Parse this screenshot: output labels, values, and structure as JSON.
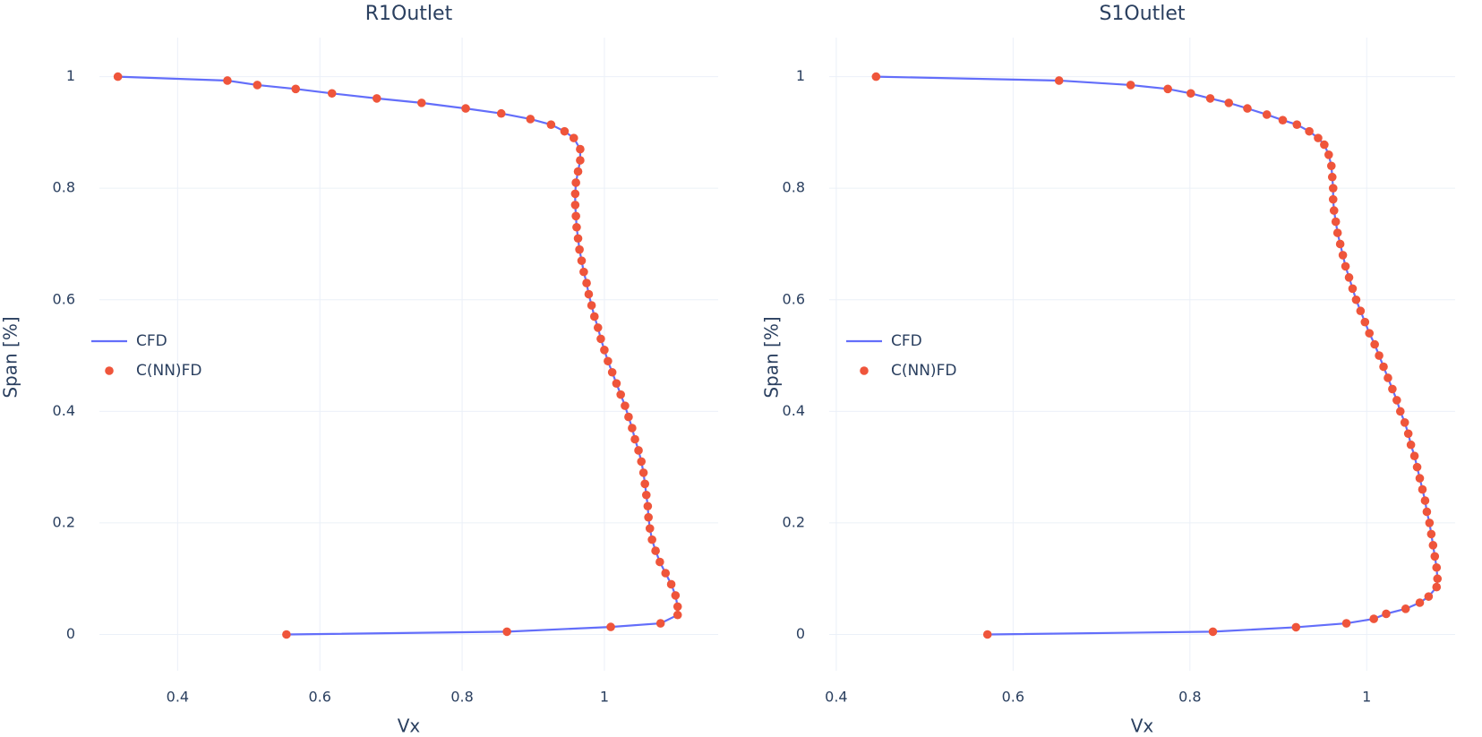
{
  "chart_data": [
    {
      "type": "line",
      "title": "R1Outlet",
      "x_label": "Vx",
      "y_label": "Span [%]",
      "xlim": [
        0.29,
        1.16
      ],
      "ylim": [
        -0.065,
        1.07
      ],
      "xticks": [
        0.4,
        0.6,
        0.8,
        1
      ],
      "yticks": [
        0,
        0.2,
        0.4,
        0.6,
        0.8,
        1
      ],
      "grid": true,
      "legend": "left",
      "series": [
        {
          "name": "CFD",
          "mode": "lines",
          "color": "#636efa",
          "x": [
            0.316,
            0.47,
            0.512,
            0.566,
            0.617,
            0.68,
            0.743,
            0.805,
            0.855,
            0.896,
            0.925,
            0.944,
            0.957,
            0.966,
            0.966,
            0.963,
            0.96,
            0.959,
            0.959,
            0.96,
            0.961,
            0.963,
            0.965,
            0.968,
            0.971,
            0.975,
            0.978,
            0.982,
            0.986,
            0.991,
            0.995,
            1.0,
            1.005,
            1.011,
            1.017,
            1.023,
            1.029,
            1.034,
            1.039,
            1.043,
            1.048,
            1.052,
            1.055,
            1.057,
            1.059,
            1.061,
            1.062,
            1.064,
            1.067,
            1.072,
            1.078,
            1.086,
            1.094,
            1.1,
            1.103,
            1.103,
            1.079,
            1.009,
            0.863,
            0.553
          ],
          "y": [
            1,
            0.993,
            0.985,
            0.978,
            0.97,
            0.961,
            0.953,
            0.943,
            0.934,
            0.924,
            0.914,
            0.902,
            0.89,
            0.87,
            0.85,
            0.83,
            0.81,
            0.79,
            0.77,
            0.75,
            0.73,
            0.71,
            0.69,
            0.67,
            0.65,
            0.63,
            0.61,
            0.59,
            0.57,
            0.55,
            0.53,
            0.51,
            0.49,
            0.47,
            0.45,
            0.43,
            0.41,
            0.39,
            0.37,
            0.35,
            0.33,
            0.31,
            0.29,
            0.27,
            0.25,
            0.23,
            0.21,
            0.19,
            0.17,
            0.15,
            0.13,
            0.11,
            0.09,
            0.07,
            0.05,
            0.035,
            0.02,
            0.0135,
            0.005,
            0
          ]
        },
        {
          "name": "C(NN)FD",
          "mode": "markers",
          "color": "#ef553b",
          "x": [
            0.316,
            0.47,
            0.512,
            0.566,
            0.617,
            0.68,
            0.743,
            0.805,
            0.855,
            0.896,
            0.925,
            0.944,
            0.957,
            0.966,
            0.966,
            0.963,
            0.96,
            0.959,
            0.959,
            0.96,
            0.961,
            0.963,
            0.965,
            0.968,
            0.971,
            0.975,
            0.978,
            0.982,
            0.986,
            0.991,
            0.995,
            1.0,
            1.005,
            1.011,
            1.017,
            1.023,
            1.029,
            1.034,
            1.039,
            1.043,
            1.048,
            1.052,
            1.055,
            1.057,
            1.059,
            1.061,
            1.062,
            1.064,
            1.067,
            1.072,
            1.078,
            1.086,
            1.094,
            1.1,
            1.103,
            1.103,
            1.079,
            1.009,
            0.863,
            0.553
          ],
          "y": [
            1,
            0.993,
            0.985,
            0.978,
            0.97,
            0.961,
            0.953,
            0.943,
            0.934,
            0.924,
            0.914,
            0.902,
            0.89,
            0.87,
            0.85,
            0.83,
            0.81,
            0.79,
            0.77,
            0.75,
            0.73,
            0.71,
            0.69,
            0.67,
            0.65,
            0.63,
            0.61,
            0.59,
            0.57,
            0.55,
            0.53,
            0.51,
            0.49,
            0.47,
            0.45,
            0.43,
            0.41,
            0.39,
            0.37,
            0.35,
            0.33,
            0.31,
            0.29,
            0.27,
            0.25,
            0.23,
            0.21,
            0.19,
            0.17,
            0.15,
            0.13,
            0.11,
            0.09,
            0.07,
            0.05,
            0.035,
            0.02,
            0.0135,
            0.005,
            0
          ]
        }
      ]
    },
    {
      "type": "line",
      "title": "S1Outlet",
      "x_label": "Vx",
      "y_label": "Span [%]",
      "xlim": [
        0.392,
        1.1
      ],
      "ylim": [
        -0.065,
        1.07
      ],
      "xticks": [
        0.4,
        0.6,
        0.8,
        1
      ],
      "yticks": [
        0,
        0.2,
        0.4,
        0.6,
        0.8,
        1
      ],
      "grid": true,
      "legend": "left",
      "series": [
        {
          "name": "CFD",
          "mode": "lines",
          "color": "#636efa",
          "x": [
            0.445,
            0.652,
            0.733,
            0.775,
            0.801,
            0.823,
            0.844,
            0.865,
            0.887,
            0.905,
            0.921,
            0.935,
            0.945,
            0.952,
            0.957,
            0.96,
            0.961,
            0.962,
            0.962,
            0.963,
            0.965,
            0.967,
            0.97,
            0.973,
            0.976,
            0.98,
            0.984,
            0.988,
            0.993,
            0.998,
            1.003,
            1.009,
            1.014,
            1.019,
            1.024,
            1.029,
            1.034,
            1.038,
            1.043,
            1.047,
            1.05,
            1.054,
            1.057,
            1.06,
            1.063,
            1.066,
            1.068,
            1.071,
            1.073,
            1.075,
            1.077,
            1.079,
            1.08,
            1.079,
            1.07,
            1.06,
            1.044,
            1.022,
            1.008,
            0.977,
            0.92,
            0.826,
            0.571
          ],
          "y": [
            1,
            0.993,
            0.985,
            0.978,
            0.97,
            0.961,
            0.953,
            0.943,
            0.932,
            0.922,
            0.914,
            0.902,
            0.89,
            0.878,
            0.86,
            0.84,
            0.82,
            0.8,
            0.78,
            0.76,
            0.74,
            0.72,
            0.7,
            0.68,
            0.66,
            0.64,
            0.62,
            0.6,
            0.58,
            0.56,
            0.54,
            0.52,
            0.5,
            0.48,
            0.46,
            0.44,
            0.42,
            0.4,
            0.38,
            0.36,
            0.34,
            0.32,
            0.3,
            0.28,
            0.26,
            0.24,
            0.22,
            0.2,
            0.18,
            0.16,
            0.14,
            0.12,
            0.1,
            0.085,
            0.068,
            0.057,
            0.046,
            0.037,
            0.028,
            0.02,
            0.013,
            0.005,
            0
          ]
        },
        {
          "name": "C(NN)FD",
          "mode": "markers",
          "color": "#ef553b",
          "x": [
            0.445,
            0.652,
            0.733,
            0.775,
            0.801,
            0.823,
            0.844,
            0.865,
            0.887,
            0.905,
            0.921,
            0.935,
            0.945,
            0.952,
            0.957,
            0.96,
            0.961,
            0.962,
            0.962,
            0.963,
            0.965,
            0.967,
            0.97,
            0.973,
            0.976,
            0.98,
            0.984,
            0.988,
            0.993,
            0.998,
            1.003,
            1.009,
            1.014,
            1.019,
            1.024,
            1.029,
            1.034,
            1.038,
            1.043,
            1.047,
            1.05,
            1.054,
            1.057,
            1.06,
            1.063,
            1.066,
            1.068,
            1.071,
            1.073,
            1.075,
            1.077,
            1.079,
            1.08,
            1.079,
            1.07,
            1.06,
            1.044,
            1.022,
            1.008,
            0.977,
            0.92,
            0.826,
            0.571
          ],
          "y": [
            1,
            0.993,
            0.985,
            0.978,
            0.97,
            0.961,
            0.953,
            0.943,
            0.932,
            0.922,
            0.914,
            0.902,
            0.89,
            0.878,
            0.86,
            0.84,
            0.82,
            0.8,
            0.78,
            0.76,
            0.74,
            0.72,
            0.7,
            0.68,
            0.66,
            0.64,
            0.62,
            0.6,
            0.58,
            0.56,
            0.54,
            0.52,
            0.5,
            0.48,
            0.46,
            0.44,
            0.42,
            0.4,
            0.38,
            0.36,
            0.34,
            0.32,
            0.3,
            0.28,
            0.26,
            0.24,
            0.22,
            0.2,
            0.18,
            0.16,
            0.14,
            0.12,
            0.1,
            0.085,
            0.068,
            0.057,
            0.046,
            0.037,
            0.028,
            0.02,
            0.013,
            0.005,
            0
          ]
        }
      ]
    }
  ]
}
